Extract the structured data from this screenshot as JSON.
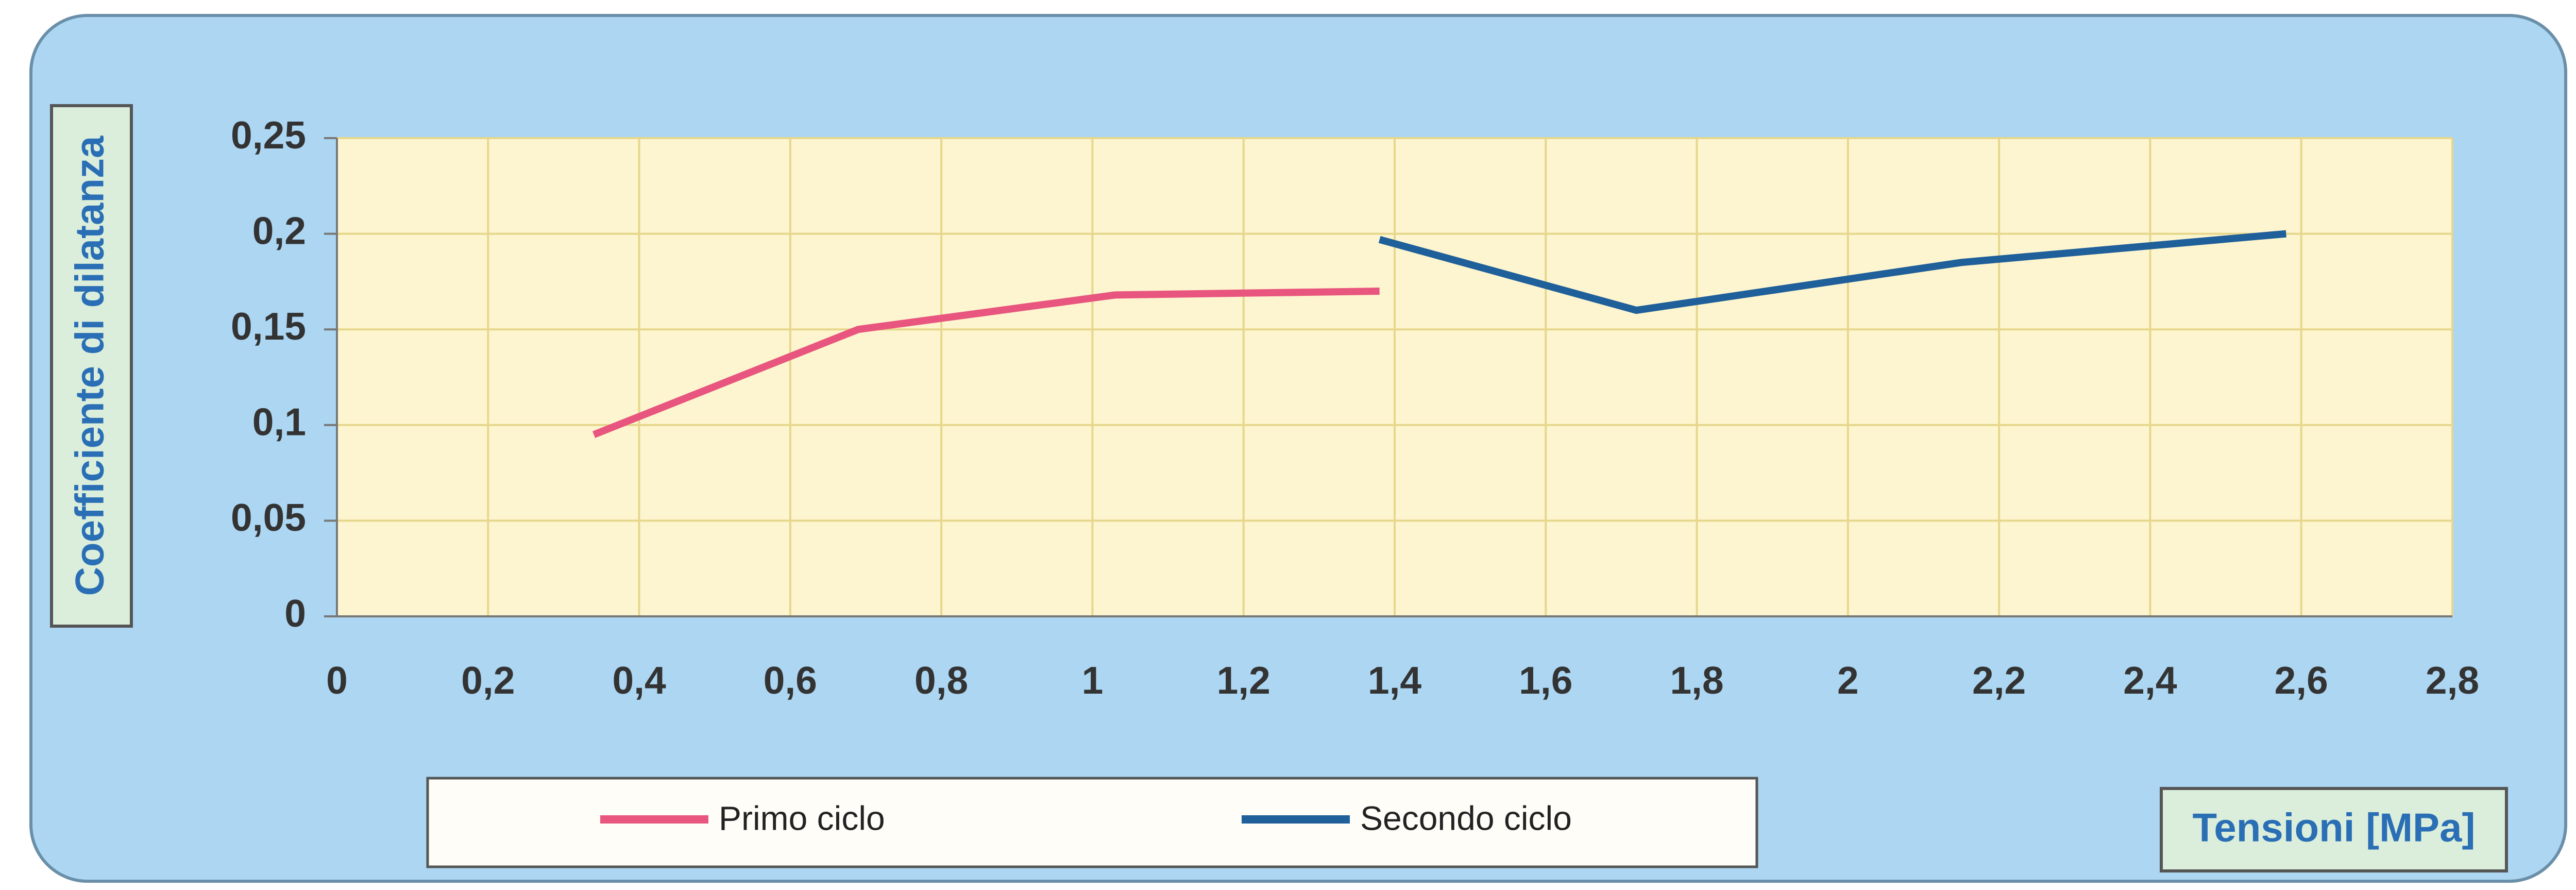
{
  "chart_data": {
    "type": "line",
    "x_label": "Tensioni  [MPa]",
    "y_label": "Coefficiente di dilatanza",
    "series": [
      {
        "name": "Primo ciclo",
        "color": "#e8557f",
        "x": [
          0.34,
          0.69,
          1.03,
          1.38
        ],
        "values": [
          0.095,
          0.15,
          0.168,
          0.17
        ]
      },
      {
        "name": "Secondo ciclo",
        "color": "#1f5f9a",
        "x": [
          1.38,
          1.72,
          2.15,
          2.58
        ],
        "values": [
          0.197,
          0.16,
          0.185,
          0.2
        ]
      }
    ],
    "xlim": [
      0,
      2.8
    ],
    "xticks": [
      0,
      {
        "value": 0.2,
        "label": "0,2"
      },
      {
        "value": 0.4,
        "label": "0,4"
      },
      {
        "value": 0.6,
        "label": "0,6"
      },
      {
        "value": 0.8,
        "label": "0,8"
      },
      1,
      {
        "value": 1.2,
        "label": "1,2"
      },
      {
        "value": 1.4,
        "label": "1,4"
      },
      {
        "value": 1.6,
        "label": "1,6"
      },
      {
        "value": 1.8,
        "label": "1,8"
      },
      2,
      {
        "value": 2.2,
        "label": "2,2"
      },
      {
        "value": 2.4,
        "label": "2,4"
      },
      {
        "value": 2.6,
        "label": "2,6"
      },
      {
        "value": 2.8,
        "label": "2,8"
      }
    ],
    "ylim": [
      0,
      0.25
    ],
    "yticks": [
      0,
      {
        "value": 0.05,
        "label": "0,05"
      },
      {
        "value": 0.1,
        "label": "0,1"
      },
      {
        "value": 0.15,
        "label": "0,15"
      },
      {
        "value": 0.2,
        "label": "0,2"
      },
      {
        "value": 0.25,
        "label": "0,25"
      }
    ],
    "grid": true
  }
}
